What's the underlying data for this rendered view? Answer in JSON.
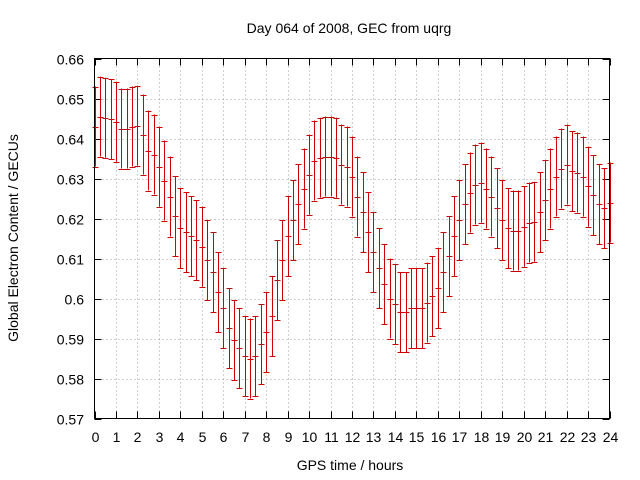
{
  "colors": {
    "errorbar": "#cc0000",
    "grid": "#a0a0a0",
    "frame": "#000000"
  },
  "chart_data": {
    "type": "errorbar",
    "title": "Day 064 of 2008, GEC from uqrg",
    "xlabel": "GPS time / hours",
    "ylabel": "Global Electron Content / GECUs",
    "xlim": [
      0,
      24
    ],
    "ylim": [
      0.57,
      0.66
    ],
    "xticks": [
      0,
      1,
      2,
      3,
      4,
      5,
      6,
      7,
      8,
      9,
      10,
      11,
      12,
      13,
      14,
      15,
      16,
      17,
      18,
      19,
      20,
      21,
      22,
      23,
      24
    ],
    "xtick_labels": [
      "0",
      "1",
      "2",
      "3",
      "4",
      "5",
      "6",
      "7",
      "8",
      "9",
      "10",
      "11",
      "12",
      "13",
      "14",
      "15",
      "16",
      "17",
      "18",
      "19",
      "20",
      "21",
      "22",
      "23",
      "24"
    ],
    "yticks": [
      0.57,
      0.58,
      0.59,
      0.6,
      0.61,
      0.62,
      0.63,
      0.64,
      0.65,
      0.66
    ],
    "ytick_labels": [
      "0.57",
      "0.58",
      "0.59",
      "0.6",
      "0.61",
      "0.62",
      "0.63",
      "0.64",
      "0.65",
      "0.66"
    ],
    "grid": true,
    "series": [
      {
        "name": "GEC",
        "x": [
          0,
          0.25,
          0.5,
          0.75,
          1,
          1.25,
          1.5,
          1.75,
          2,
          2.25,
          2.5,
          2.75,
          3,
          3.25,
          3.5,
          3.75,
          4,
          4.25,
          4.5,
          4.75,
          5,
          5.25,
          5.5,
          5.75,
          6,
          6.25,
          6.5,
          6.75,
          7,
          7.25,
          7.5,
          7.75,
          8,
          8.25,
          8.5,
          8.75,
          9,
          9.25,
          9.5,
          9.75,
          10,
          10.25,
          10.5,
          10.75,
          11,
          11.25,
          11.5,
          11.75,
          12,
          12.25,
          12.5,
          12.75,
          13,
          13.25,
          13.5,
          13.75,
          14,
          14.25,
          14.5,
          14.75,
          15,
          15.25,
          15.5,
          15.75,
          16,
          16.25,
          16.5,
          16.75,
          17,
          17.25,
          17.5,
          17.75,
          18,
          18.25,
          18.5,
          18.75,
          19,
          19.25,
          19.5,
          19.75,
          20,
          20.25,
          20.5,
          20.75,
          21,
          21.25,
          21.5,
          21.75,
          22,
          22.25,
          22.5,
          22.75,
          23,
          23.25,
          23.5,
          23.75,
          24
        ],
        "y": [
          0.643,
          0.6455,
          0.6452,
          0.6448,
          0.6442,
          0.6425,
          0.6425,
          0.643,
          0.6432,
          0.641,
          0.637,
          0.636,
          0.633,
          0.6295,
          0.6255,
          0.6205,
          0.6175,
          0.6165,
          0.6155,
          0.6145,
          0.613,
          0.6095,
          0.6065,
          0.6015,
          0.5975,
          0.5925,
          0.5895,
          0.5875,
          0.5855,
          0.585,
          0.5855,
          0.5885,
          0.5915,
          0.5955,
          0.6045,
          0.6095,
          0.6155,
          0.6195,
          0.6235,
          0.6275,
          0.631,
          0.6345,
          0.6352,
          0.6355,
          0.6355,
          0.6352,
          0.6335,
          0.633,
          0.6305,
          0.6255,
          0.6215,
          0.6165,
          0.6115,
          0.6075,
          0.6035,
          0.6,
          0.5985,
          0.5965,
          0.5965,
          0.5975,
          0.5975,
          0.5975,
          0.599,
          0.6005,
          0.6025,
          0.6065,
          0.6105,
          0.6155,
          0.6195,
          0.6235,
          0.6265,
          0.6285,
          0.629,
          0.6275,
          0.6255,
          0.6225,
          0.6195,
          0.6175,
          0.617,
          0.617,
          0.618,
          0.619,
          0.6192,
          0.6215,
          0.6245,
          0.6275,
          0.6305,
          0.6325,
          0.6335,
          0.6318,
          0.6315,
          0.6305,
          0.628,
          0.6258,
          0.6235,
          0.6225,
          0.624
        ],
        "err": [
          0.01,
          0.01,
          0.01,
          0.01,
          0.01,
          0.01,
          0.01,
          0.01,
          0.01,
          0.01,
          0.01,
          0.01,
          0.01,
          0.01,
          0.01,
          0.01,
          0.01,
          0.01,
          0.01,
          0.01,
          0.01,
          0.01,
          0.01,
          0.01,
          0.01,
          0.01,
          0.01,
          0.01,
          0.01,
          0.01,
          0.01,
          0.01,
          0.01,
          0.01,
          0.01,
          0.01,
          0.01,
          0.01,
          0.01,
          0.01,
          0.01,
          0.01,
          0.01,
          0.01,
          0.01,
          0.01,
          0.01,
          0.01,
          0.01,
          0.01,
          0.01,
          0.01,
          0.01,
          0.01,
          0.01,
          0.01,
          0.01,
          0.01,
          0.01,
          0.01,
          0.01,
          0.01,
          0.01,
          0.01,
          0.01,
          0.01,
          0.01,
          0.01,
          0.01,
          0.01,
          0.01,
          0.01,
          0.01,
          0.01,
          0.01,
          0.01,
          0.01,
          0.01,
          0.01,
          0.01,
          0.01,
          0.01,
          0.01,
          0.01,
          0.01,
          0.01,
          0.01,
          0.01,
          0.01,
          0.01,
          0.01,
          0.01,
          0.01,
          0.01,
          0.01,
          0.01,
          0.01
        ]
      }
    ]
  }
}
